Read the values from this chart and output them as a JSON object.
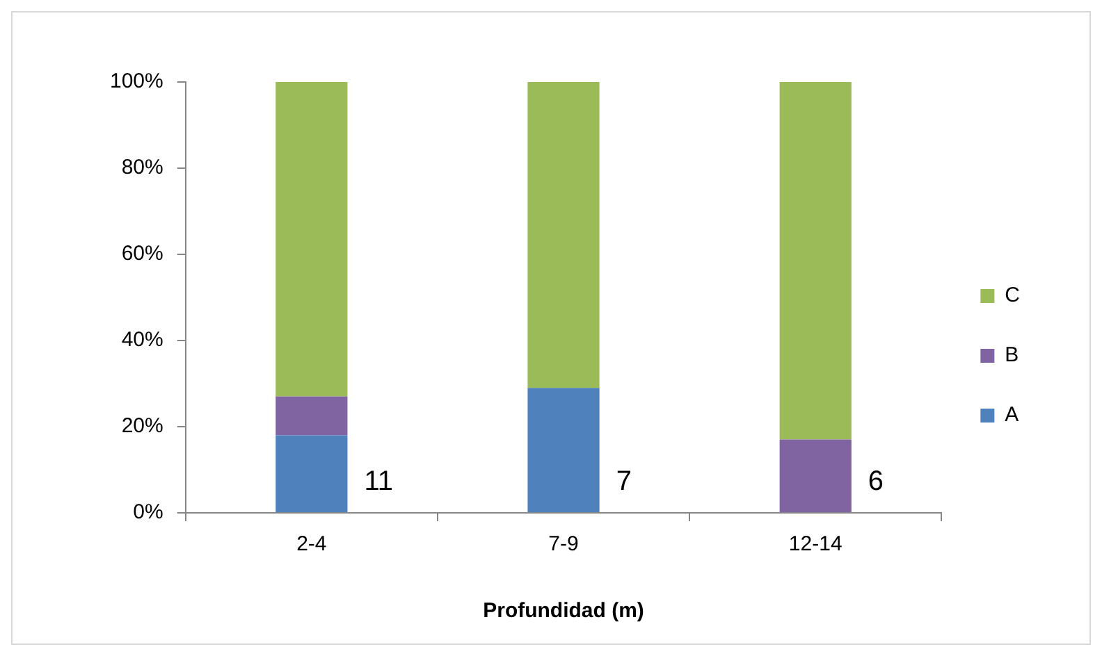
{
  "chart_data": {
    "type": "bar",
    "stacked": true,
    "xlabel": "Profundidad (m)",
    "categories": [
      "2-4",
      "7-9",
      "12-14"
    ],
    "series": [
      {
        "name": "A",
        "color": "#4f81bd",
        "values": [
          18,
          29,
          0
        ]
      },
      {
        "name": "B",
        "color": "#8064a2",
        "values": [
          9,
          0,
          17
        ]
      },
      {
        "name": "C",
        "color": "#9bbb59",
        "values": [
          73,
          71,
          83
        ]
      }
    ],
    "ylim": [
      0,
      100
    ],
    "yticks": [
      {
        "value": 0,
        "label": "0%"
      },
      {
        "value": 20,
        "label": "20%"
      },
      {
        "value": 40,
        "label": "40%"
      },
      {
        "value": 60,
        "label": "60%"
      },
      {
        "value": 80,
        "label": "80%"
      },
      {
        "value": 100,
        "label": "100%"
      }
    ],
    "annotations": [
      "11",
      "7",
      "6"
    ],
    "grid": false,
    "legend": "right"
  }
}
